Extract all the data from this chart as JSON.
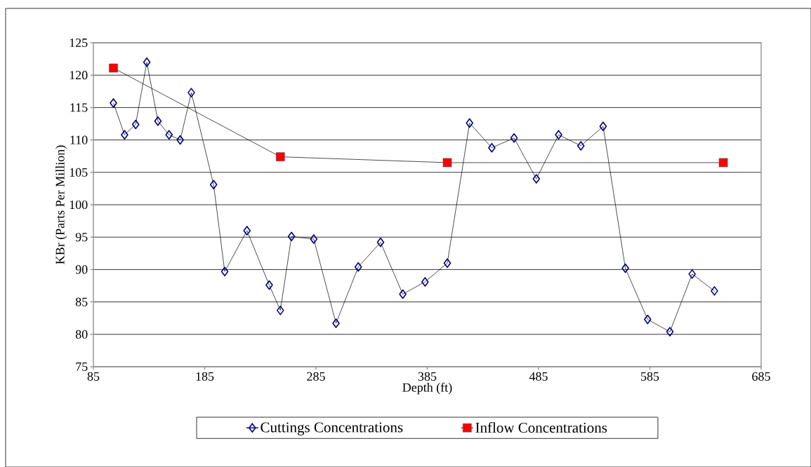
{
  "chart_data": {
    "type": "line",
    "xlabel": "Depth (ft)",
    "ylabel": "KBr (Parts Per Million)",
    "series": [
      {
        "name": "Cuttings Concentrations",
        "color": "#000080",
        "marker": "diamond",
        "x": [
          103,
          113,
          123,
          133,
          143,
          153,
          163,
          173,
          193,
          203,
          223,
          243,
          253,
          263,
          283,
          303,
          323,
          343,
          363,
          383,
          403,
          423,
          443,
          463,
          483,
          503,
          523,
          543,
          563,
          583,
          603,
          623,
          643
        ],
        "values": [
          115.7,
          110.8,
          112.4,
          122.0,
          112.9,
          110.8,
          110.0,
          117.3,
          103.1,
          89.7,
          96.0,
          87.6,
          83.7,
          95.1,
          94.7,
          81.7,
          90.4,
          94.2,
          86.2,
          88.1,
          91.0,
          112.6,
          108.8,
          110.3,
          104.0,
          110.8,
          109.1,
          112.1,
          90.2,
          82.3,
          80.4,
          89.3,
          86.7
        ]
      },
      {
        "name": "Inflow Concentrations",
        "color": "#ff0000",
        "marker": "square",
        "x": [
          103,
          253,
          403,
          651
        ],
        "values": [
          121.1,
          107.4,
          106.5,
          106.5
        ]
      }
    ],
    "xlim": [
      85,
      685
    ],
    "xticks": [
      85,
      185,
      285,
      385,
      485,
      585,
      685
    ],
    "ylim": [
      75,
      125
    ],
    "yticks": [
      75,
      80,
      85,
      90,
      95,
      100,
      105,
      110,
      115,
      120,
      125
    ],
    "grid": "y",
    "legend": "bottom",
    "line_style": "solid"
  }
}
